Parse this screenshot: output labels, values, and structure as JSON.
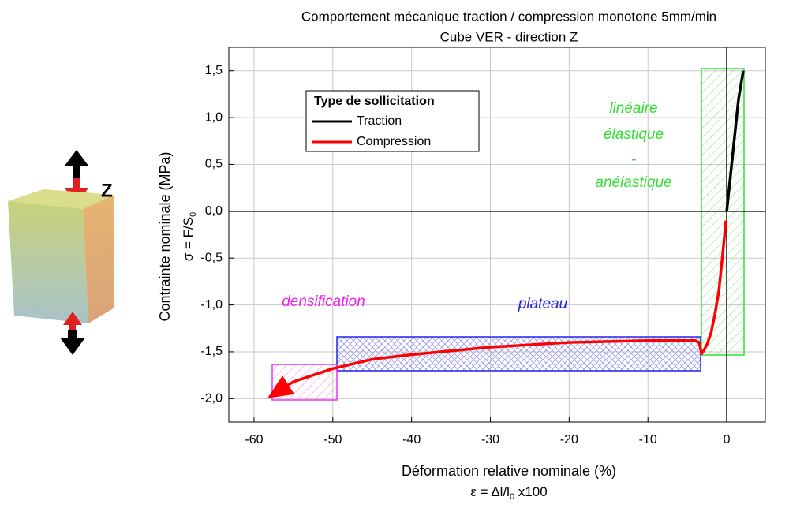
{
  "chart_data": {
    "type": "line",
    "title": "Comportement mécanique traction / compression monotone 5mm/min",
    "subtitle": "Cube VER - direction Z",
    "x_label": "Déformation relative nominale (%)",
    "x_label_formula": [
      "ε = Δl/l",
      "0",
      " x100"
    ],
    "y_label": "Contrainte nominale (MPa)",
    "y_label_formula": [
      "σ = F/S",
      "0"
    ],
    "legend_title": "Type de sollicitation",
    "xlim": [
      -63.2,
      4.9
    ],
    "ylim": [
      -2.25,
      1.75
    ],
    "xticks": [
      -60,
      -50,
      -40,
      -30,
      -20,
      -10,
      0
    ],
    "yticks": [
      {
        "value": -2.0,
        "label": "-2,0"
      },
      {
        "value": -1.5,
        "label": "-1,5"
      },
      {
        "value": -1.0,
        "label": "-1,0"
      },
      {
        "value": -0.5,
        "label": "-0,5"
      },
      {
        "value": 0.0,
        "label": "0,0"
      },
      {
        "value": 0.5,
        "label": "0,5"
      },
      {
        "value": 1.0,
        "label": "1,0"
      },
      {
        "value": 1.5,
        "label": "1,5"
      }
    ],
    "grid": true,
    "series": [
      {
        "name": "Traction",
        "color": "#000000",
        "x": [
          0,
          0.5,
          1,
          1.5,
          2.1
        ],
        "values": [
          0,
          0.4,
          0.8,
          1.2,
          1.5
        ]
      },
      {
        "name": "Compression",
        "color": "#ff0000",
        "x": [
          -0.1,
          -0.5,
          -1,
          -1.5,
          -2,
          -2.5,
          -3,
          -3.2,
          -3.5,
          -4,
          -5,
          -10,
          -20,
          -30,
          -40,
          -45,
          -50,
          -55,
          -58
        ],
        "values": [
          -0.1,
          -0.45,
          -0.85,
          -1.1,
          -1.3,
          -1.42,
          -1.5,
          -1.52,
          -1.4,
          -1.38,
          -1.38,
          -1.38,
          -1.4,
          -1.45,
          -1.53,
          -1.58,
          -1.68,
          -1.82,
          -1.98
        ]
      }
    ],
    "annotations": {
      "densification": "densification",
      "plateau": "plateau",
      "elastic": [
        "linéaire",
        "élastique",
        "-",
        "anélastique"
      ]
    },
    "cube_label": "Z"
  }
}
